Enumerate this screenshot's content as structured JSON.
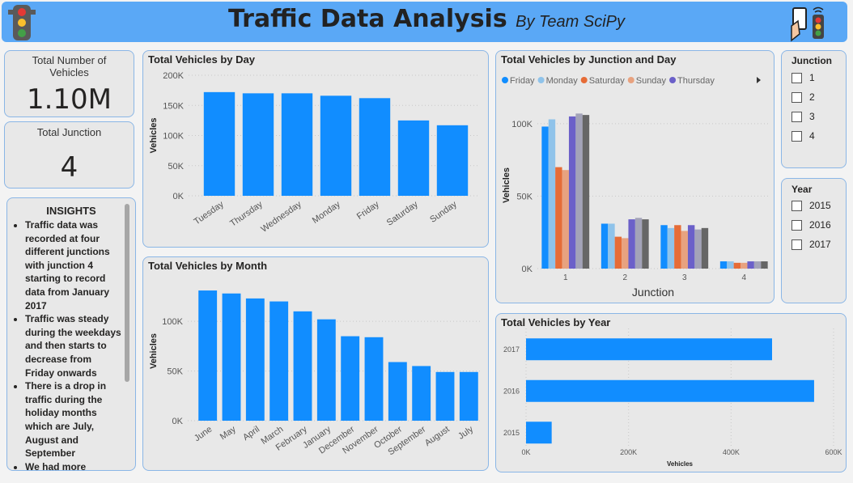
{
  "header": {
    "title": "Traffic Data Analysis",
    "subtitle": "By Team SciPy"
  },
  "cards": [
    {
      "label": "Total Number of Vehicles",
      "value": "1.10M"
    },
    {
      "label": "Total Junction",
      "value": "4"
    }
  ],
  "insights": {
    "title": "INSIGHTS",
    "items": [
      "Traffic data was recorded at four different junctions with junction 4 starting to record data from January 2017",
      "Traffic was steady during the weekdays and then starts to decrease from Friday onwards",
      "There is a drop in traffic during the holiday months which are July, August and September",
      "We had more"
    ]
  },
  "slicers": [
    {
      "title": "Junction",
      "options": [
        "1",
        "2",
        "3",
        "4"
      ]
    },
    {
      "title": "Year",
      "options": [
        "2015",
        "2016",
        "2017"
      ]
    }
  ],
  "chart_data": [
    {
      "type": "bar",
      "title": "Total Vehicles by Day",
      "y_label": "Vehicles",
      "color": "#118dff",
      "categories": [
        "Tuesday",
        "Thursday",
        "Wednesday",
        "Monday",
        "Friday",
        "Saturday",
        "Sunday"
      ],
      "values": [
        172000,
        170000,
        170000,
        166000,
        162000,
        125000,
        117000
      ],
      "ylim": [
        0,
        200000
      ],
      "yticks": [
        {
          "value": 0,
          "label": "0K"
        },
        {
          "value": 50000,
          "label": "50K"
        },
        {
          "value": 100000,
          "label": "100K"
        },
        {
          "value": 150000,
          "label": "150K"
        },
        {
          "value": 200000,
          "label": "200K"
        }
      ],
      "grid": true
    },
    {
      "type": "bar",
      "title": "Total Vehicles by Month",
      "y_label": "Vehicles",
      "color": "#118dff",
      "categories": [
        "June",
        "May",
        "April",
        "March",
        "February",
        "January",
        "December",
        "November",
        "October",
        "September",
        "August",
        "July"
      ],
      "values": [
        131000,
        128000,
        123000,
        120000,
        110000,
        102000,
        85000,
        84000,
        59000,
        55000,
        49000,
        49000
      ],
      "ylim": [
        0,
        140000
      ],
      "yticks": [
        {
          "value": 0,
          "label": "0K"
        },
        {
          "value": 50000,
          "label": "50K"
        },
        {
          "value": 100000,
          "label": "100K"
        }
      ],
      "grid": true
    },
    {
      "type": "grouped_bar",
      "title": "Total Vehicles by Junction and Day",
      "x_label": "Junction",
      "y_label": "Vehicles",
      "categories": [
        "1",
        "2",
        "3",
        "4"
      ],
      "series": [
        {
          "name": "Friday",
          "color": "#118dff",
          "values": [
            98000,
            31000,
            30000,
            5000
          ]
        },
        {
          "name": "Monday",
          "color": "#8fc3ea",
          "values": [
            103000,
            31000,
            28000,
            5000
          ]
        },
        {
          "name": "Saturday",
          "color": "#e66c37",
          "values": [
            70000,
            22000,
            30000,
            4000
          ]
        },
        {
          "name": "Sunday",
          "color": "#e8a27f",
          "values": [
            68000,
            21000,
            26000,
            4000
          ]
        },
        {
          "name": "Thursday",
          "color": "#6b60c9",
          "values": [
            105000,
            34000,
            30000,
            5000
          ]
        },
        {
          "color": "#a3a3b8",
          "values": [
            107000,
            35000,
            27000,
            5000
          ]
        },
        {
          "color": "#666666",
          "values": [
            106000,
            34000,
            28000,
            5000
          ]
        }
      ],
      "ylim": [
        0,
        115000
      ],
      "yticks": [
        {
          "value": 0,
          "label": "0K"
        },
        {
          "value": 50000,
          "label": "50K"
        },
        {
          "value": 100000,
          "label": "100K"
        }
      ],
      "grid": true
    },
    {
      "type": "barh",
      "title": "Total Vehicles by Year",
      "x_label": "Vehicles",
      "color": "#118dff",
      "categories": [
        "2017",
        "2016",
        "2015"
      ],
      "values": [
        480000,
        562000,
        50000
      ],
      "xlim": [
        0,
        600000
      ],
      "xticks": [
        {
          "value": 0,
          "label": "0K"
        },
        {
          "value": 200000,
          "label": "200K"
        },
        {
          "value": 400000,
          "label": "400K"
        },
        {
          "value": 600000,
          "label": "600K"
        }
      ],
      "grid": true
    }
  ]
}
